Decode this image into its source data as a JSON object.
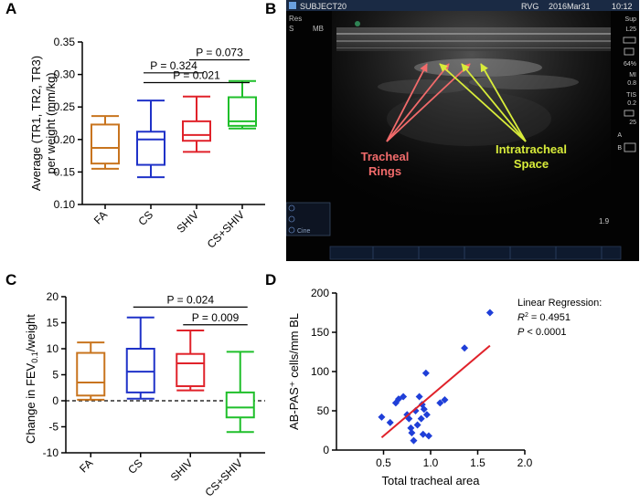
{
  "panels": {
    "A": {
      "letter": "A"
    },
    "B": {
      "letter": "B"
    },
    "C": {
      "letter": "C"
    },
    "D": {
      "letter": "D"
    }
  },
  "ultrasound": {
    "subject": "SUBJECT20",
    "device": "RVG",
    "date": "2016Mar31",
    "time": "10:12",
    "top_left_1": "Res",
    "top_left_2": "S",
    "top_left_3": "MB",
    "right_labels": [
      "Sup",
      "L25",
      "64%",
      "MI",
      "0.8",
      "TIS",
      "0.2",
      "25",
      "A",
      "B"
    ],
    "scale_value": "1.9",
    "cine_label": "Cine",
    "label_rings_1": "Tracheal",
    "label_rings_2": "Rings",
    "label_space_1": "Intratracheal",
    "label_space_2": "Space",
    "colors": {
      "rings": "#f26b6b",
      "space": "#d8ec3a"
    }
  },
  "chart_data": [
    {
      "id": "A",
      "type": "boxplot",
      "ylabel_line1": "Average (TR1, TR2, TR3)",
      "ylabel_line2": "per weight (mm/kg)",
      "ylim": [
        0.1,
        0.35
      ],
      "yticks": [
        "0.10",
        "0.15",
        "0.20",
        "0.25",
        "0.30",
        "0.35"
      ],
      "ytick_values": [
        0.1,
        0.15,
        0.2,
        0.25,
        0.3,
        0.35
      ],
      "categories": [
        "FA",
        "CS",
        "SHIV",
        "CS+SHIV"
      ],
      "colors": [
        "#c8741e",
        "#1f32c8",
        "#e0222a",
        "#1fbf2a"
      ],
      "boxes": [
        {
          "min": 0.155,
          "q1": 0.163,
          "median": 0.187,
          "q3": 0.223,
          "max": 0.236
        },
        {
          "min": 0.142,
          "q1": 0.161,
          "median": 0.2,
          "q3": 0.212,
          "max": 0.26
        },
        {
          "min": 0.181,
          "q1": 0.198,
          "median": 0.207,
          "q3": 0.228,
          "max": 0.266
        },
        {
          "min": 0.217,
          "q1": 0.221,
          "median": 0.228,
          "q3": 0.265,
          "max": 0.29
        }
      ],
      "comparisons": [
        {
          "label": "P = 0.324",
          "from": 1,
          "to": 2,
          "y": 0.3025
        },
        {
          "label": "P = 0.073",
          "from": 2,
          "to": 3,
          "y": 0.3225
        },
        {
          "label": "P = 0.021",
          "from": 1,
          "to": 3,
          "y": 0.2875
        }
      ]
    },
    {
      "id": "C",
      "type": "boxplot",
      "ylabel_main": "Change in FEV",
      "ylabel_sub": "0.1",
      "ylabel_tail": "/weight",
      "ylim": [
        -10,
        20
      ],
      "yticks": [
        "-10",
        "-5",
        "0",
        "5",
        "10",
        "15",
        "20"
      ],
      "ytick_values": [
        -10,
        -5,
        0,
        5,
        10,
        15,
        20
      ],
      "reference_line": 0,
      "categories": [
        "FA",
        "CS",
        "SHIV",
        "CS+SHIV"
      ],
      "colors": [
        "#c8741e",
        "#1f32c8",
        "#e0222a",
        "#1fbf2a"
      ],
      "boxes": [
        {
          "min": 0.2,
          "q1": 1.0,
          "median": 3.5,
          "q3": 9.2,
          "max": 11.2
        },
        {
          "min": 0.4,
          "q1": 1.6,
          "median": 5.6,
          "q3": 10.0,
          "max": 16.0
        },
        {
          "min": 2.0,
          "q1": 2.8,
          "median": 7.2,
          "q3": 9.0,
          "max": 13.5
        },
        {
          "min": -6.0,
          "q1": -3.2,
          "median": -1.3,
          "q3": 1.6,
          "max": 9.4
        }
      ],
      "comparisons": [
        {
          "label": "P = 0.024",
          "from": 1,
          "to": 3,
          "y": 18.0
        },
        {
          "label": "P = 0.009",
          "from": 2,
          "to": 3,
          "y": 14.6
        }
      ]
    },
    {
      "id": "D",
      "type": "scatter",
      "xlabel": "Total tracheal area",
      "ylabel": "AB-PAS⁺ cells/mm BL",
      "xlim": [
        0.0,
        2.0
      ],
      "ylim": [
        0,
        200
      ],
      "xticks": [
        "0.5",
        "1.0",
        "1.5",
        "2.0"
      ],
      "xtick_values": [
        0.5,
        1.0,
        1.5,
        2.0
      ],
      "yticks": [
        "0",
        "50",
        "100",
        "150",
        "200"
      ],
      "ytick_values": [
        0,
        50,
        100,
        150,
        200
      ],
      "point_color": "#1f3fd8",
      "line_color": "#e0222a",
      "x": [
        0.48,
        0.57,
        0.63,
        0.66,
        0.71,
        0.75,
        0.77,
        0.79,
        0.8,
        0.82,
        0.84,
        0.86,
        0.88,
        0.9,
        0.91,
        0.92,
        0.93,
        0.95,
        0.96,
        0.98,
        1.1,
        1.15,
        1.36,
        1.63
      ],
      "y": [
        42,
        35,
        60,
        65,
        68,
        45,
        40,
        28,
        22,
        12,
        50,
        32,
        68,
        40,
        58,
        20,
        52,
        98,
        45,
        18,
        60,
        64,
        130,
        175
      ],
      "fit": {
        "x": [
          0.48,
          1.63
        ],
        "y": [
          16,
          133
        ]
      },
      "annotation_title": "Linear Regression:",
      "r2_label": "R",
      "r2_value": "= 0.4951",
      "p_label": "P",
      "p_value": "< 0.0001"
    }
  ]
}
